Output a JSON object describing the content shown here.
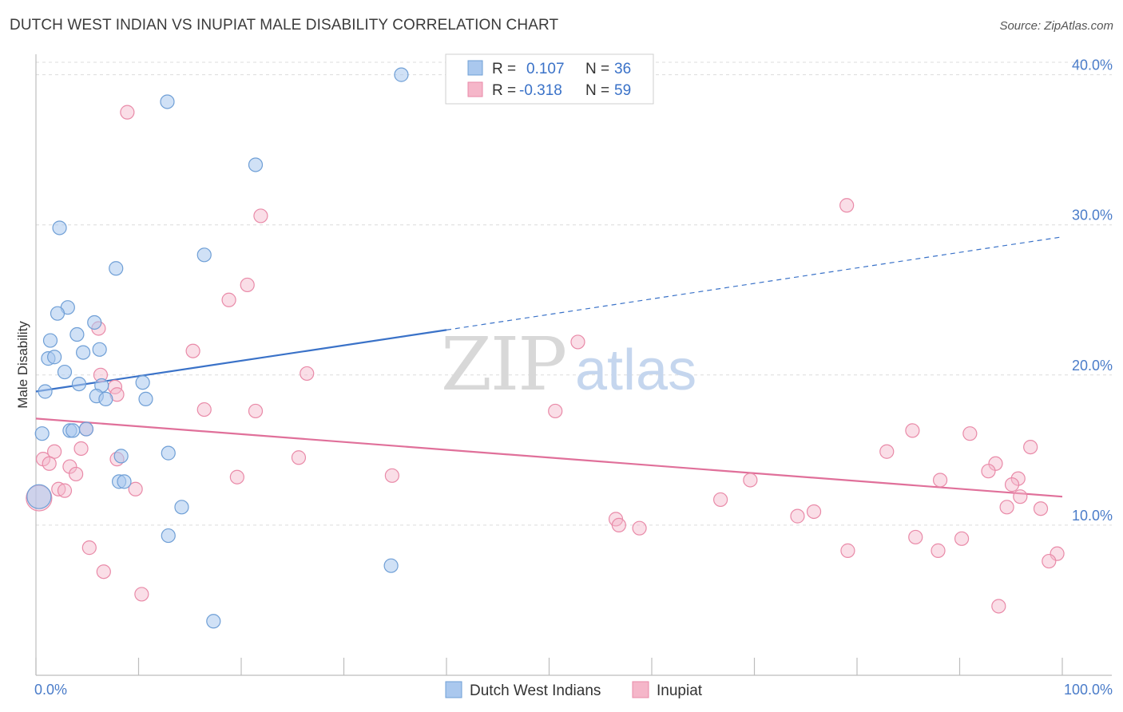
{
  "header": {
    "title": "DUTCH WEST INDIAN VS INUPIAT MALE DISABILITY CORRELATION CHART",
    "source": "Source: ZipAtlas.com"
  },
  "watermark": {
    "zip": "ZIP",
    "atlas": "atlas"
  },
  "colors": {
    "blue": "#3a72c8",
    "pink": "#e0709a",
    "blue_fill": "#aac8ee",
    "pink_fill": "#f5b6c9"
  },
  "chart_data": {
    "type": "scatter",
    "title": "DUTCH WEST INDIAN VS INUPIAT MALE DISABILITY CORRELATION CHART",
    "xlabel": "",
    "ylabel": "Male Disability",
    "xlim": [
      0,
      100
    ],
    "ylim": [
      0,
      42
    ],
    "x_tick_labels": [
      "0.0%",
      "100.0%"
    ],
    "y_ticks": [
      10,
      20,
      30,
      40
    ],
    "y_tick_labels": [
      "10.0%",
      "20.0%",
      "30.0%",
      "40.0%"
    ],
    "legend": [
      {
        "r_label": "R =",
        "r_value": "0.107",
        "n_label": "N =",
        "n_value": "36"
      },
      {
        "r_label": "R =",
        "r_value": "-0.318",
        "n_label": "N =",
        "n_value": "59"
      }
    ],
    "series": [
      {
        "name": "Dutch West Indians",
        "color": "#3a72c8",
        "trend": {
          "x": [
            0,
            40
          ],
          "y": [
            18.9,
            23.0
          ]
        },
        "trend_extension": {
          "x": [
            40,
            100
          ],
          "y": [
            23.0,
            29.2
          ]
        },
        "points": [
          [
            35.6,
            40.0
          ],
          [
            12.8,
            38.2
          ],
          [
            21.4,
            34.0
          ],
          [
            2.3,
            29.8
          ],
          [
            16.4,
            28.0
          ],
          [
            7.8,
            27.1
          ],
          [
            3.1,
            24.5
          ],
          [
            2.1,
            24.1
          ],
          [
            5.7,
            23.5
          ],
          [
            1.4,
            22.3
          ],
          [
            4.0,
            22.7
          ],
          [
            1.2,
            21.1
          ],
          [
            1.8,
            21.2
          ],
          [
            6.2,
            21.7
          ],
          [
            4.6,
            21.5
          ],
          [
            2.8,
            20.2
          ],
          [
            10.4,
            19.5
          ],
          [
            4.2,
            19.4
          ],
          [
            6.4,
            19.3
          ],
          [
            0.9,
            18.9
          ],
          [
            5.9,
            18.6
          ],
          [
            6.8,
            18.4
          ],
          [
            10.7,
            18.4
          ],
          [
            3.3,
            16.3
          ],
          [
            3.6,
            16.3
          ],
          [
            4.9,
            16.4
          ],
          [
            0.6,
            16.1
          ],
          [
            12.9,
            14.8
          ],
          [
            8.3,
            14.6
          ],
          [
            8.1,
            12.9
          ],
          [
            8.6,
            12.9
          ],
          [
            14.2,
            11.2
          ],
          [
            12.9,
            9.3
          ],
          [
            34.6,
            7.3
          ],
          [
            17.3,
            3.6
          ],
          [
            0.3,
            11.9
          ]
        ]
      },
      {
        "name": "Inupiat",
        "color": "#e0709a",
        "trend": {
          "x": [
            0,
            100
          ],
          "y": [
            17.1,
            11.9
          ]
        },
        "points": [
          [
            8.9,
            37.5
          ],
          [
            21.9,
            30.6
          ],
          [
            79.0,
            31.3
          ],
          [
            20.6,
            26.0
          ],
          [
            18.8,
            25.0
          ],
          [
            6.1,
            23.1
          ],
          [
            52.8,
            22.2
          ],
          [
            15.3,
            21.6
          ],
          [
            26.4,
            20.1
          ],
          [
            6.3,
            20.0
          ],
          [
            7.7,
            19.2
          ],
          [
            7.9,
            18.7
          ],
          [
            16.4,
            17.7
          ],
          [
            21.4,
            17.6
          ],
          [
            50.6,
            17.6
          ],
          [
            85.4,
            16.3
          ],
          [
            91.0,
            16.1
          ],
          [
            4.9,
            16.4
          ],
          [
            96.9,
            15.2
          ],
          [
            4.4,
            15.1
          ],
          [
            1.8,
            14.9
          ],
          [
            82.9,
            14.9
          ],
          [
            25.6,
            14.5
          ],
          [
            7.9,
            14.4
          ],
          [
            0.7,
            14.4
          ],
          [
            1.3,
            14.1
          ],
          [
            93.5,
            14.1
          ],
          [
            3.3,
            13.9
          ],
          [
            92.8,
            13.6
          ],
          [
            3.9,
            13.4
          ],
          [
            19.6,
            13.2
          ],
          [
            34.7,
            13.3
          ],
          [
            88.1,
            13.0
          ],
          [
            95.7,
            13.1
          ],
          [
            69.6,
            13.0
          ],
          [
            95.1,
            12.7
          ],
          [
            2.2,
            12.4
          ],
          [
            2.8,
            12.3
          ],
          [
            9.7,
            12.4
          ],
          [
            95.9,
            11.9
          ],
          [
            66.7,
            11.7
          ],
          [
            94.6,
            11.2
          ],
          [
            97.9,
            11.1
          ],
          [
            75.8,
            10.9
          ],
          [
            74.2,
            10.6
          ],
          [
            56.5,
            10.4
          ],
          [
            56.8,
            10.0
          ],
          [
            58.8,
            9.8
          ],
          [
            85.7,
            9.2
          ],
          [
            90.2,
            9.1
          ],
          [
            5.2,
            8.5
          ],
          [
            79.1,
            8.3
          ],
          [
            87.9,
            8.3
          ],
          [
            99.5,
            8.1
          ],
          [
            98.7,
            7.6
          ],
          [
            6.6,
            6.9
          ],
          [
            10.3,
            5.4
          ],
          [
            93.8,
            4.6
          ],
          [
            0.3,
            11.8
          ]
        ]
      }
    ]
  }
}
